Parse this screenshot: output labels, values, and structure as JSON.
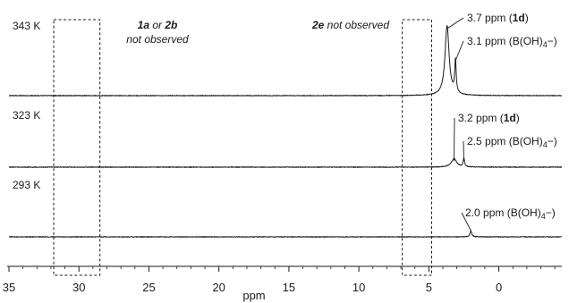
{
  "chart_data": {
    "type": "line",
    "xlabel": "ppm",
    "xlim": [
      35,
      -4.5
    ],
    "x_ticks": [
      {
        "value": 35,
        "label": "35"
      },
      {
        "value": 30,
        "label": "30"
      },
      {
        "value": 25,
        "label": "25"
      },
      {
        "value": 20,
        "label": "20"
      },
      {
        "value": 15,
        "label": "15"
      },
      {
        "value": 10,
        "label": "10"
      },
      {
        "value": 5,
        "label": "5"
      },
      {
        "value": 0,
        "label": "0"
      }
    ],
    "series": [
      {
        "name": "343 K",
        "peaks": [
          {
            "ppm": 3.7,
            "relative_height": 1.0,
            "width": 0.35
          },
          {
            "ppm": 3.1,
            "relative_height": 0.47,
            "width": 0.12
          }
        ],
        "annotations": [
          {
            "value": "3.7 ppm (",
            "bold": "1d",
            "after": ")",
            "ppm": 3.7
          },
          {
            "value": "3.1 ppm (B(OH)",
            "sub": "4",
            "after": "−)",
            "ppm": 3.1
          }
        ]
      },
      {
        "name": "323 K",
        "peaks": [
          {
            "ppm": 3.2,
            "relative_height": 0.1,
            "width": 0.45
          },
          {
            "ppm": 2.5,
            "relative_height": 0.1,
            "width": 0.12
          }
        ],
        "annotations": [
          {
            "value": "3.2 ppm (",
            "bold": "1d",
            "after": ")",
            "ppm": 3.2
          },
          {
            "value": "2.5 ppm (B(OH)",
            "sub": "4",
            "after": "−)",
            "ppm": 2.5
          }
        ]
      },
      {
        "name": "293 K",
        "peaks": [
          {
            "ppm": 2.0,
            "relative_height": 0.07,
            "width": 0.15
          }
        ],
        "annotations": [
          {
            "value": "2.0 ppm (B(OH)",
            "sub": "4",
            "after": "−)",
            "ppm": 2.0
          }
        ]
      }
    ],
    "regions": [
      {
        "from": 31.8,
        "to": 28.5,
        "label_line1": [
          "1a",
          " or ",
          "2b"
        ],
        "label_line2": "not observed"
      },
      {
        "from": 6.9,
        "to": 4.8,
        "label_line1": [
          "2e",
          " not observed"
        ],
        "label_line2": ""
      }
    ]
  }
}
